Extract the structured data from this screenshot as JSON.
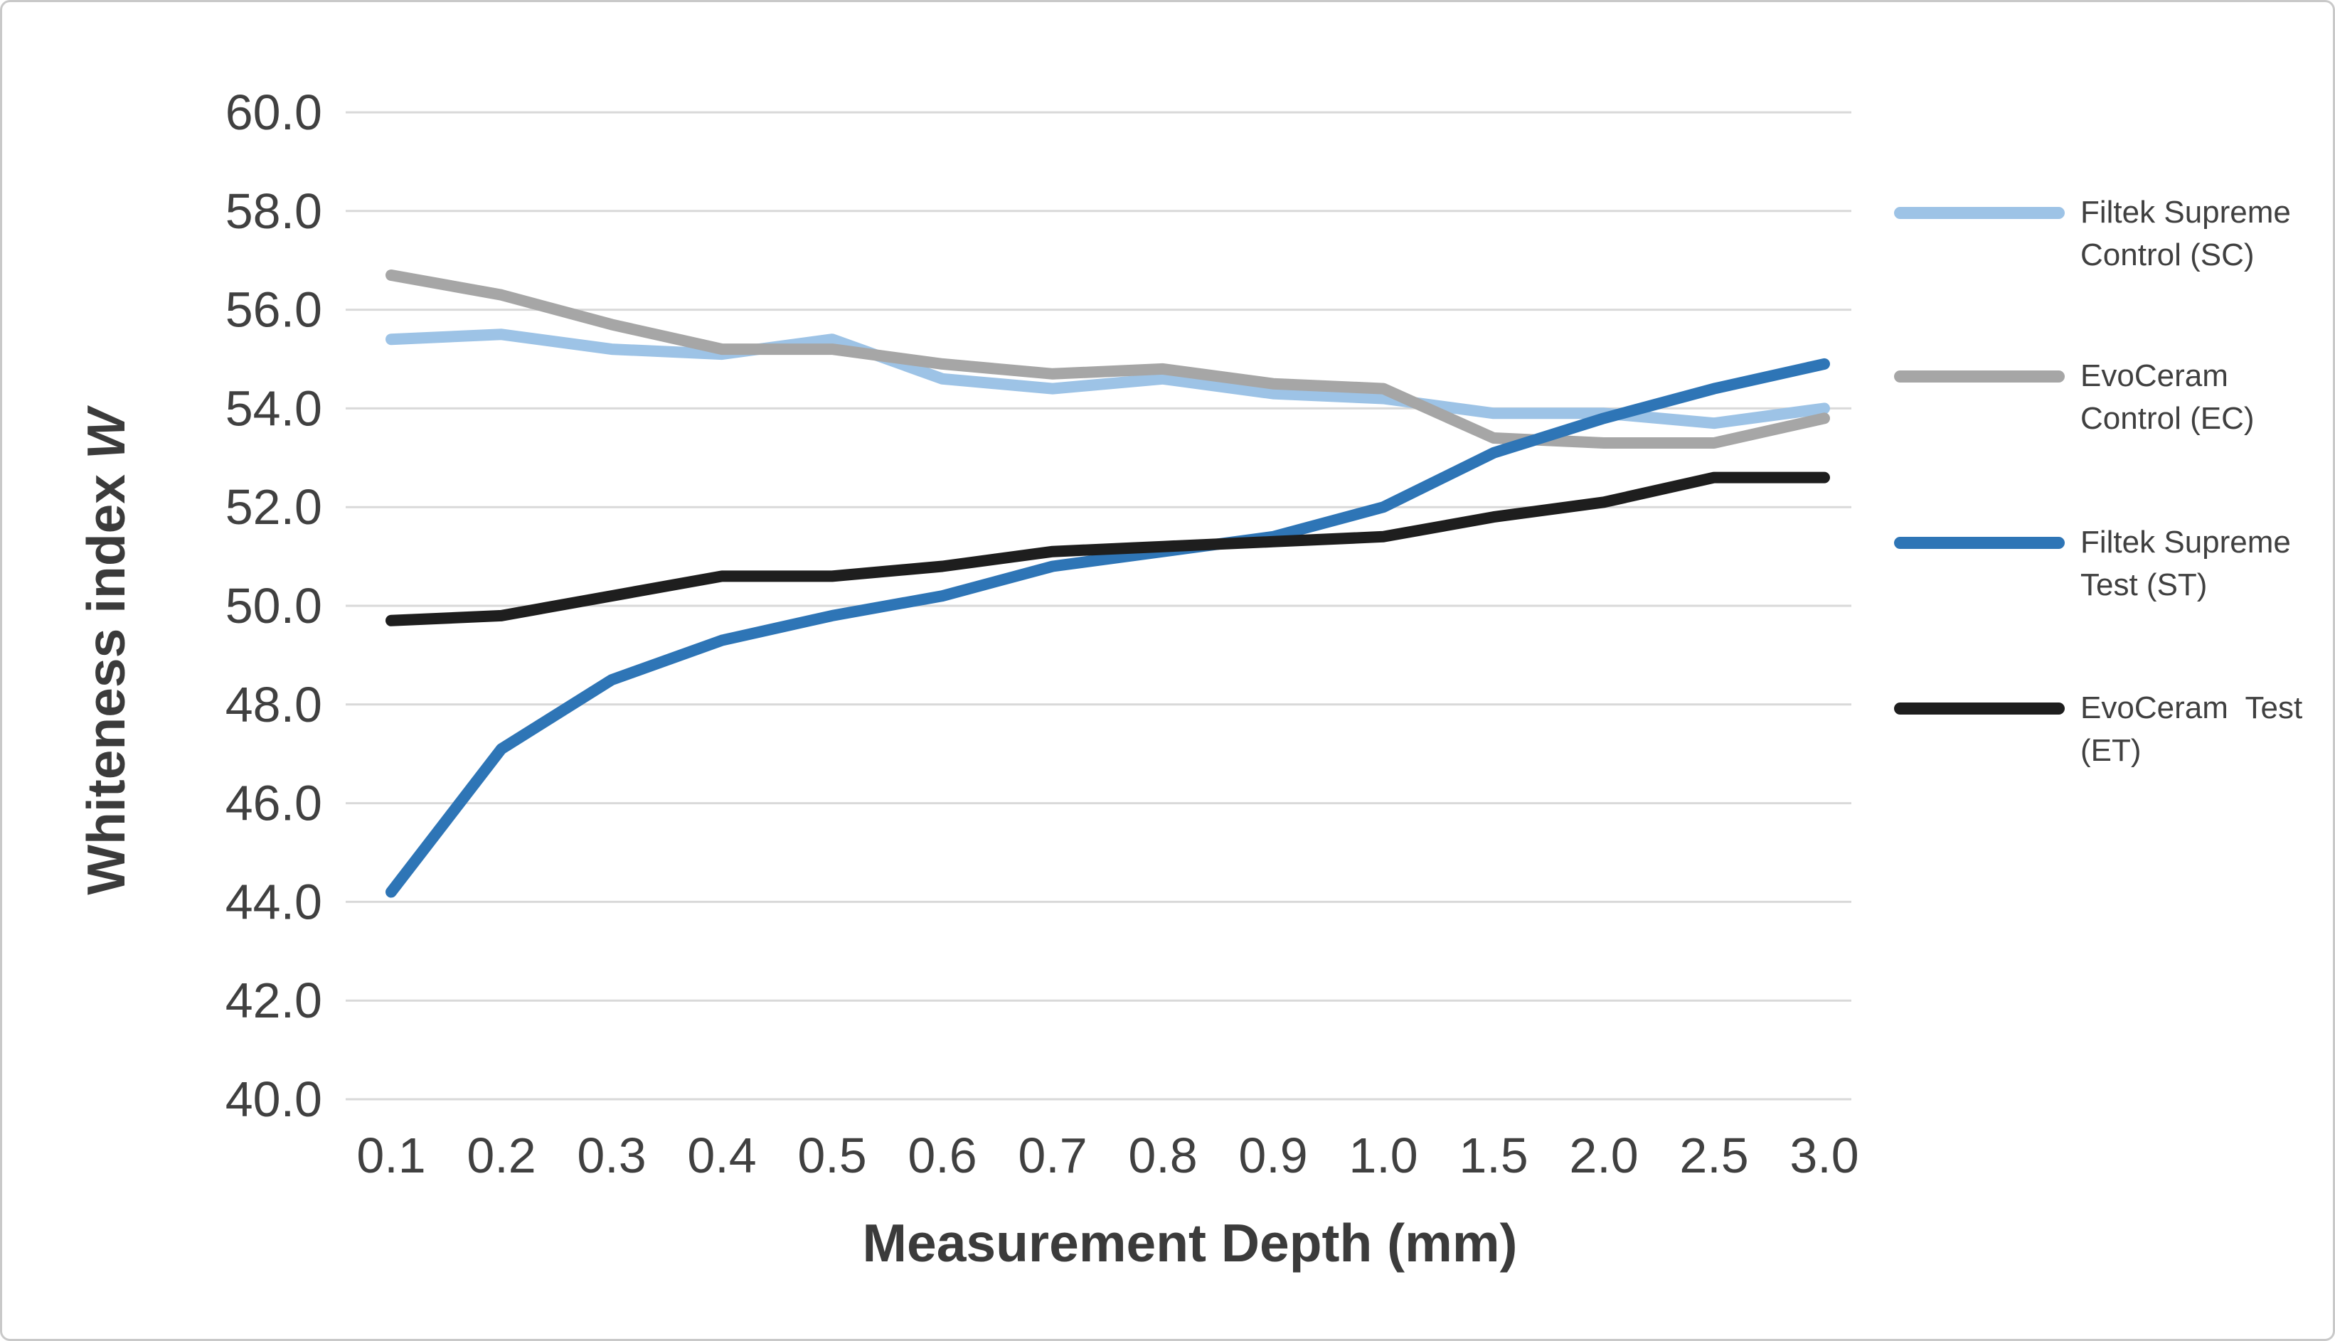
{
  "frame": {
    "background": "#ffffff",
    "border_color": "#c9c9c9"
  },
  "axes": {
    "y_title_main": "Whiteness index",
    "y_title_var": "W",
    "x_title": "Measurement Depth (mm)",
    "tick_color": "#404040",
    "gridline_color": "#d9d9d9"
  },
  "chart_data": {
    "type": "line",
    "title": "",
    "xlabel": "Measurement Depth (mm)",
    "ylabel": "Whiteness index W",
    "ylim": [
      40.0,
      60.0
    ],
    "y_tick_step": 2.0,
    "y_tick_format_decimals": 1,
    "grid": true,
    "legend_position": "right",
    "categories": [
      "0.1",
      "0.2",
      "0.3",
      "0.4",
      "0.5",
      "0.6",
      "0.7",
      "0.8",
      "0.9",
      "1.0",
      "1.5",
      "2.0",
      "2.5",
      "3.0"
    ],
    "series": [
      {
        "name": "Filtek Supreme Control (SC)",
        "legend_lines": [
          "Filtek Supreme",
          "Control (SC)"
        ],
        "color": "#9DC3E6",
        "values": [
          55.4,
          55.5,
          55.2,
          55.1,
          55.4,
          54.6,
          54.4,
          54.6,
          54.3,
          54.2,
          53.9,
          53.9,
          53.7,
          54.0
        ]
      },
      {
        "name": "EvoCeram Control (EC)",
        "legend_lines": [
          "EvoCeram",
          "Control (EC)"
        ],
        "color": "#A6A6A6",
        "values": [
          56.7,
          56.3,
          55.7,
          55.2,
          55.2,
          54.9,
          54.7,
          54.8,
          54.5,
          54.4,
          53.4,
          53.3,
          53.3,
          53.8
        ]
      },
      {
        "name": "Filtek Supreme Test (ST)",
        "legend_lines": [
          "Filtek Supreme",
          "Test (ST)"
        ],
        "color": "#2E75B6",
        "values": [
          44.2,
          47.1,
          48.5,
          49.3,
          49.8,
          50.2,
          50.8,
          51.1,
          51.4,
          52.0,
          53.1,
          53.8,
          54.4,
          54.9
        ]
      },
      {
        "name": "EvoCeram Test (ET)",
        "legend_lines": [
          "EvoCeram  Test",
          "(ET)"
        ],
        "color": "#1E1E1E",
        "values": [
          49.7,
          49.8,
          50.2,
          50.6,
          50.6,
          50.8,
          51.1,
          51.2,
          51.3,
          51.4,
          51.8,
          52.1,
          52.6,
          52.6
        ]
      }
    ]
  }
}
